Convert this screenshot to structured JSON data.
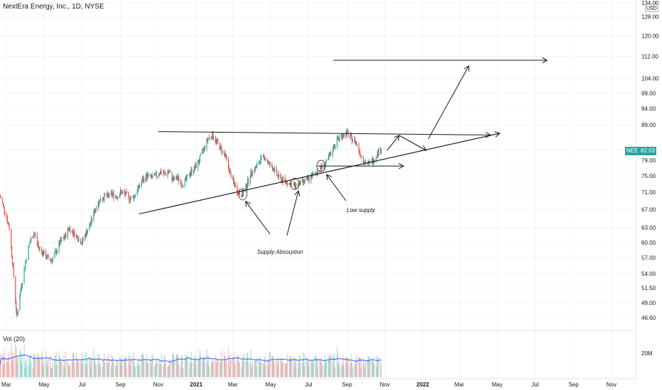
{
  "header": {
    "title": "NextEra Energy, Inc., 1D, NYSE"
  },
  "price_axis": {
    "currency": "USD",
    "symbol_badge": "NEE",
    "last_price_label": "82.03",
    "ticks": [
      {
        "label": "134.00",
        "value": 134
      },
      {
        "label": "128.00",
        "value": 128
      },
      {
        "label": "120.00",
        "value": 120
      },
      {
        "label": "112.00",
        "value": 112
      },
      {
        "label": "104.00",
        "value": 104
      },
      {
        "label": "99.00",
        "value": 99
      },
      {
        "label": "94.00",
        "value": 94
      },
      {
        "label": "89.00",
        "value": 89
      },
      {
        "label": "82.00",
        "value": 82
      },
      {
        "label": "79.00",
        "value": 79
      },
      {
        "label": "75.00",
        "value": 75
      },
      {
        "label": "71.00",
        "value": 71
      },
      {
        "label": "67.00",
        "value": 67
      },
      {
        "label": "63.00",
        "value": 63
      },
      {
        "label": "60.00",
        "value": 60
      },
      {
        "label": "57.00",
        "value": 57
      },
      {
        "label": "54.00",
        "value": 54
      },
      {
        "label": "51.50",
        "value": 51.5
      },
      {
        "label": "49.00",
        "value": 49
      },
      {
        "label": "46.60",
        "value": 46.6
      }
    ]
  },
  "time_axis": {
    "ticks": [
      {
        "label": "Mar",
        "date": "2020-03-01",
        "bold": false
      },
      {
        "label": "May",
        "date": "2020-05-01",
        "bold": false
      },
      {
        "label": "Jul",
        "date": "2020-07-01",
        "bold": false
      },
      {
        "label": "Sep",
        "date": "2020-09-01",
        "bold": false
      },
      {
        "label": "Nov",
        "date": "2020-11-01",
        "bold": false
      },
      {
        "label": "2021",
        "date": "2021-01-01",
        "bold": true
      },
      {
        "label": "Mar",
        "date": "2021-03-01",
        "bold": false
      },
      {
        "label": "May",
        "date": "2021-05-01",
        "bold": false
      },
      {
        "label": "Jul",
        "date": "2021-07-01",
        "bold": false
      },
      {
        "label": "Sep",
        "date": "2021-09-01",
        "bold": false
      },
      {
        "label": "Nov",
        "date": "2021-11-01",
        "bold": false
      },
      {
        "label": "2022",
        "date": "2022-01-01",
        "bold": true
      },
      {
        "label": "Mar",
        "date": "2022-03-01",
        "bold": false
      },
      {
        "label": "May",
        "date": "2022-05-01",
        "bold": false
      },
      {
        "label": "Jul",
        "date": "2022-07-01",
        "bold": false
      },
      {
        "label": "Sep",
        "date": "2022-09-01",
        "bold": false
      },
      {
        "label": "Nov",
        "date": "2022-11-01",
        "bold": false
      }
    ]
  },
  "volume": {
    "label": "Vol (20)",
    "axis_label": "20M",
    "axis_value_millions": 20
  },
  "annotations": {
    "supply_absorption": "Supply Absorption",
    "low_supply": "Low supply"
  },
  "colors": {
    "up": "#26a69a",
    "down": "#ef5350",
    "volume_ma": "#2962ff",
    "drawing": "#131722",
    "grid": "#f0f3fa",
    "axis_text": "#131722"
  },
  "chart_data": {
    "type": "candlestick",
    "x_range": [
      "2020-02-20",
      "2022-12-10"
    ],
    "y_scale": "log",
    "series": [
      {
        "name": "NEE",
        "close_points": [
          [
            "2020-02-20",
            70
          ],
          [
            "2020-02-27",
            67
          ],
          [
            "2020-03-06",
            63
          ],
          [
            "2020-03-12",
            55
          ],
          [
            "2020-03-18",
            46.6
          ],
          [
            "2020-03-24",
            51
          ],
          [
            "2020-04-01",
            56
          ],
          [
            "2020-04-08",
            60
          ],
          [
            "2020-04-15",
            62
          ],
          [
            "2020-04-22",
            59
          ],
          [
            "2020-04-29",
            58
          ],
          [
            "2020-05-06",
            57
          ],
          [
            "2020-05-13",
            56.5
          ],
          [
            "2020-05-20",
            58
          ],
          [
            "2020-05-27",
            60
          ],
          [
            "2020-06-03",
            61
          ],
          [
            "2020-06-10",
            63
          ],
          [
            "2020-06-17",
            62
          ],
          [
            "2020-06-24",
            61
          ],
          [
            "2020-07-01",
            60
          ],
          [
            "2020-07-08",
            62
          ],
          [
            "2020-07-15",
            64
          ],
          [
            "2020-07-22",
            67
          ],
          [
            "2020-07-29",
            69
          ],
          [
            "2020-08-05",
            70
          ],
          [
            "2020-08-12",
            70
          ],
          [
            "2020-08-19",
            70.5
          ],
          [
            "2020-08-26",
            70
          ],
          [
            "2020-09-02",
            71
          ],
          [
            "2020-09-09",
            70.5
          ],
          [
            "2020-09-16",
            69.5
          ],
          [
            "2020-09-23",
            70
          ],
          [
            "2020-09-30",
            72
          ],
          [
            "2020-10-07",
            74
          ],
          [
            "2020-10-14",
            75
          ],
          [
            "2020-10-21",
            74.5
          ],
          [
            "2020-10-28",
            75
          ],
          [
            "2020-11-04",
            76
          ],
          [
            "2020-11-11",
            75.5
          ],
          [
            "2020-11-18",
            76
          ],
          [
            "2020-11-25",
            74
          ],
          [
            "2020-12-02",
            74.5
          ],
          [
            "2020-12-09",
            73
          ],
          [
            "2020-12-16",
            74
          ],
          [
            "2020-12-23",
            76
          ],
          [
            "2020-12-30",
            77
          ],
          [
            "2021-01-06",
            79
          ],
          [
            "2021-01-13",
            82
          ],
          [
            "2021-01-20",
            85
          ],
          [
            "2021-01-27",
            86
          ],
          [
            "2021-02-03",
            84
          ],
          [
            "2021-02-10",
            82
          ],
          [
            "2021-02-17",
            80
          ],
          [
            "2021-02-24",
            76
          ],
          [
            "2021-03-03",
            73
          ],
          [
            "2021-03-10",
            71
          ],
          [
            "2021-03-17",
            70.5
          ],
          [
            "2021-03-24",
            73
          ],
          [
            "2021-03-31",
            76
          ],
          [
            "2021-04-07",
            77
          ],
          [
            "2021-04-14",
            79
          ],
          [
            "2021-04-21",
            80
          ],
          [
            "2021-04-28",
            78
          ],
          [
            "2021-05-05",
            77
          ],
          [
            "2021-05-12",
            75
          ],
          [
            "2021-05-19",
            74
          ],
          [
            "2021-05-26",
            73.5
          ],
          [
            "2021-06-02",
            73
          ],
          [
            "2021-06-09",
            72.5
          ],
          [
            "2021-06-16",
            73
          ],
          [
            "2021-06-23",
            73.5
          ],
          [
            "2021-06-30",
            74
          ],
          [
            "2021-07-07",
            75
          ],
          [
            "2021-07-14",
            76
          ],
          [
            "2021-07-21",
            77
          ],
          [
            "2021-07-28",
            78
          ],
          [
            "2021-08-04",
            80
          ],
          [
            "2021-08-11",
            83
          ],
          [
            "2021-08-18",
            85
          ],
          [
            "2021-08-25",
            86
          ],
          [
            "2021-09-01",
            86.5
          ],
          [
            "2021-09-08",
            85
          ],
          [
            "2021-09-15",
            84
          ],
          [
            "2021-09-22",
            81
          ],
          [
            "2021-09-29",
            78.5
          ],
          [
            "2021-10-06",
            78
          ],
          [
            "2021-10-13",
            79
          ],
          [
            "2021-10-20",
            81
          ],
          [
            "2021-10-26",
            82.03
          ]
        ]
      }
    ],
    "trendlines": [
      {
        "name": "resistance",
        "from": [
          "2020-11-01",
          87
        ],
        "to": [
          "2022-04-20",
          86
        ]
      },
      {
        "name": "support",
        "from": [
          "2020-10-01",
          66
        ],
        "to": [
          "2022-05-05",
          86.5
        ]
      },
      {
        "name": "target",
        "from": [
          "2021-08-10",
          110.5
        ],
        "to": [
          "2022-07-20",
          110.5
        ]
      },
      {
        "name": "low-supply-level",
        "from": [
          "2021-07-15",
          77.5
        ],
        "to": [
          "2021-12-01",
          77.5
        ]
      }
    ],
    "marked_lows": [
      {
        "date": "2021-03-17",
        "value": 70.5
      },
      {
        "date": "2021-06-09",
        "value": 73
      },
      {
        "date": "2021-07-21",
        "value": 77.5
      }
    ]
  }
}
